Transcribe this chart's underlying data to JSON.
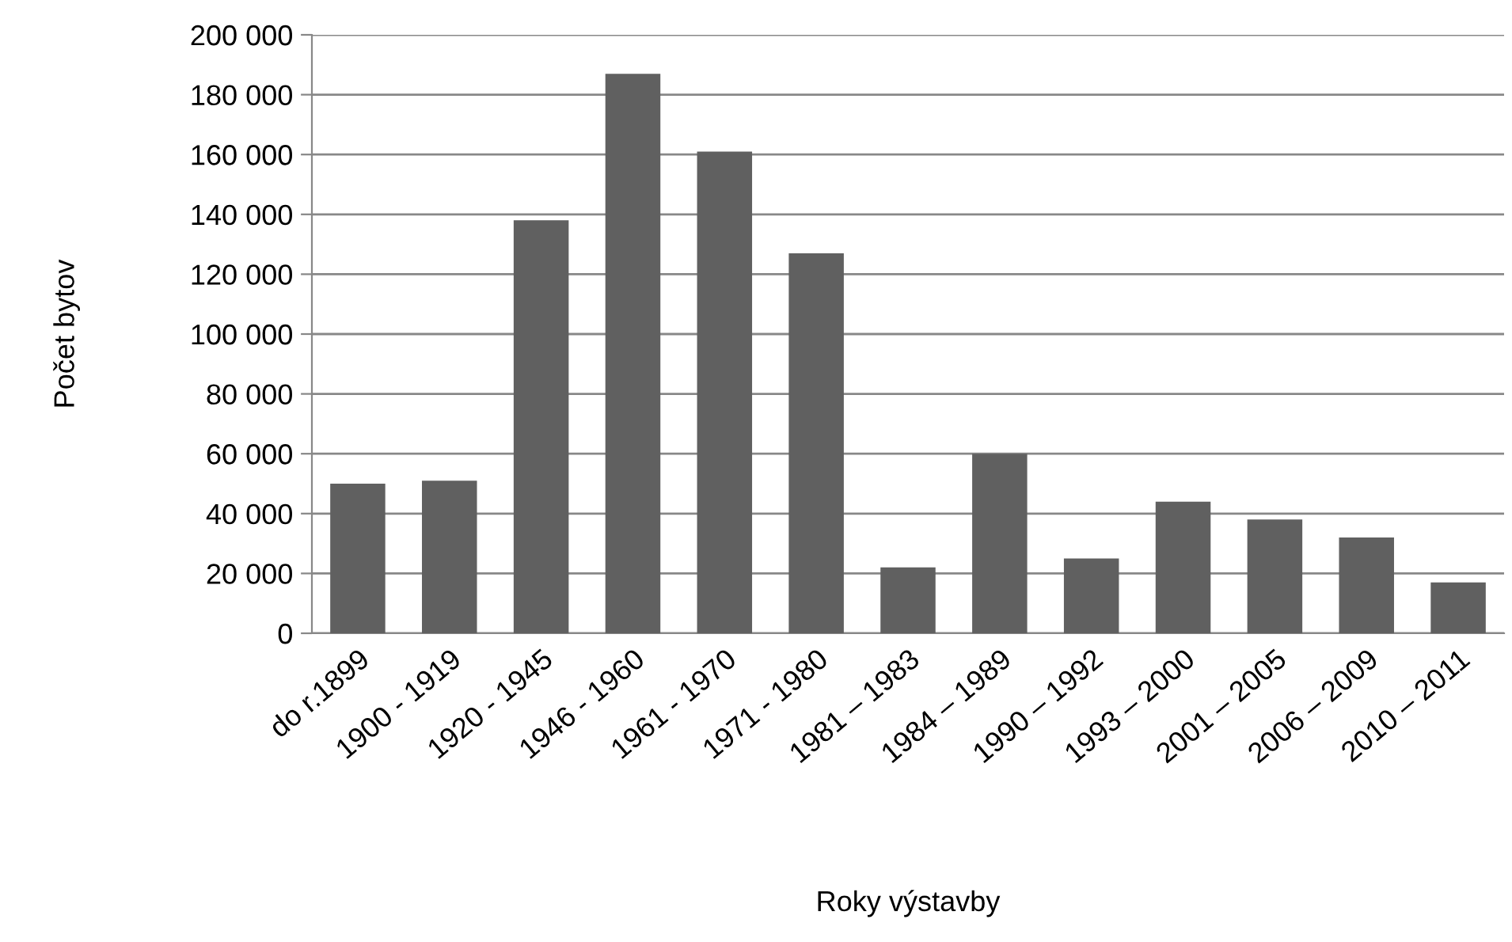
{
  "chart_data": {
    "type": "bar",
    "xlabel": "Roky výstavby",
    "ylabel": "Počet bytov",
    "categories": [
      "do r.1899",
      "1900 - 1919",
      "1920 - 1945",
      "1946 - 1960",
      "1961 - 1970",
      "1971 - 1980",
      "1981 – 1983",
      "1984 – 1989",
      "1990 – 1992",
      "1993 – 2000",
      "2001 – 2005",
      "2006 – 2009",
      "2010 – 2011"
    ],
    "values": [
      50000,
      51000,
      138000,
      187000,
      161000,
      127000,
      22000,
      60000,
      25000,
      44000,
      38000,
      32000,
      17000
    ],
    "color": "#606060",
    "ylim": [
      0,
      200000
    ],
    "yticks": [
      {
        "value": 0,
        "label": "0"
      },
      {
        "value": 20000,
        "label": "20 000"
      },
      {
        "value": 40000,
        "label": "40 000"
      },
      {
        "value": 60000,
        "label": "60 000"
      },
      {
        "value": 80000,
        "label": "80 000"
      },
      {
        "value": 100000,
        "label": "100 000"
      },
      {
        "value": 120000,
        "label": "120 000"
      },
      {
        "value": 140000,
        "label": "140 000"
      },
      {
        "value": 160000,
        "label": "160 000"
      },
      {
        "value": 180000,
        "label": "180 000"
      },
      {
        "value": 200000,
        "label": "200 000"
      }
    ],
    "grid": "y",
    "legend": false
  }
}
